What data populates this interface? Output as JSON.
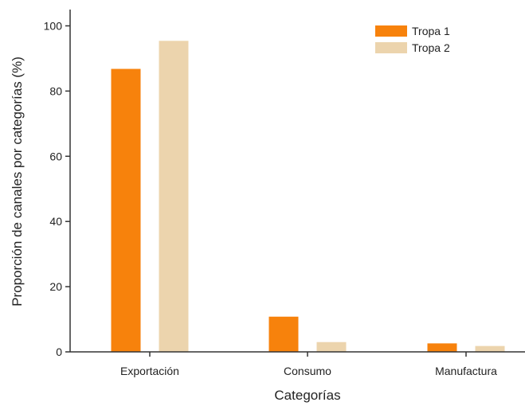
{
  "chart_data": {
    "type": "bar",
    "title": "",
    "xlabel": "Categorías",
    "ylabel": "Proporción de canales por categorías (%)",
    "categories": [
      "Exportación",
      "Consumo",
      "Manufactura"
    ],
    "series": [
      {
        "name": "Tropa 1",
        "color": "#f7820c",
        "values": [
          86.8,
          10.8,
          2.6
        ]
      },
      {
        "name": "Tropa 2",
        "color": "#ecd4ad",
        "values": [
          95.4,
          3.0,
          1.8
        ]
      }
    ],
    "ylim": [
      0,
      105
    ],
    "yticks": [
      "0",
      "20",
      "40",
      "60",
      "80",
      "100"
    ],
    "grid": false,
    "legend_position": "top-right"
  }
}
